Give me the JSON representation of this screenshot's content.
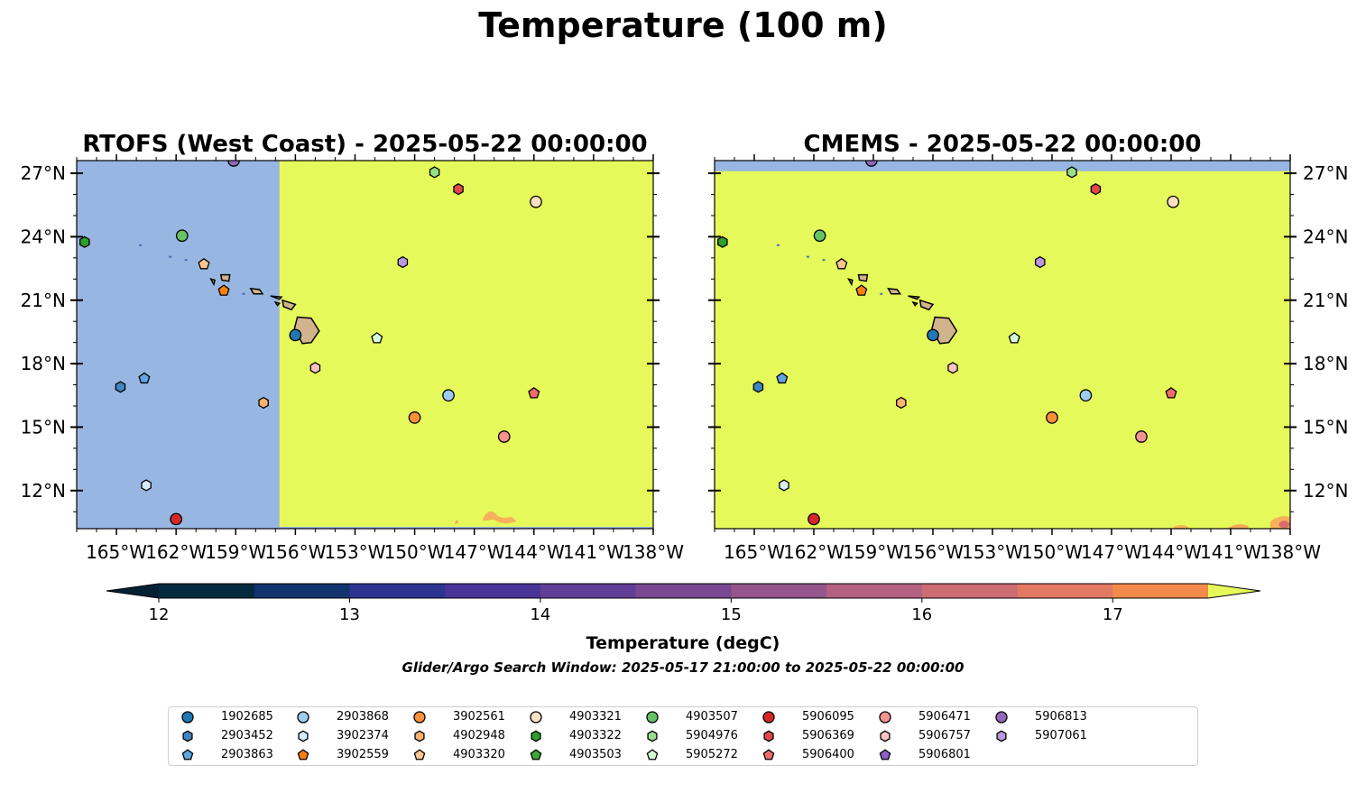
{
  "figure": {
    "title": "Temperature (100 m)",
    "search_window": "Glider/Argo Search Window: 2025-05-17 21:00:00 to 2025-05-22 00:00:00"
  },
  "colors": {
    "left_model_field": "#e6f95a",
    "left_no_data": "#97b6e1",
    "right_model_field": "#e6f95a",
    "right_no_data": "#97b6e1",
    "land": "#d2b48c",
    "warm_patch": "#f8a85a"
  },
  "panels": [
    {
      "title": "RTOFS (West Coast) - 2025-05-22 00:00:00",
      "data_extent_west_lon": -156.8
    },
    {
      "title": "CMEMS - 2025-05-22 00:00:00",
      "data_extent_north_lat": 27.1
    }
  ],
  "chart_data": {
    "type": "scatter",
    "projection": "plate-carree",
    "xlim": [
      -167,
      -138
    ],
    "ylim": [
      10.2,
      27.6
    ],
    "x_ticks": [
      -165,
      -162,
      -159,
      -156,
      -153,
      -150,
      -147,
      -144,
      -141,
      -138
    ],
    "x_tick_labels": [
      "165°W",
      "162°W",
      "159°W",
      "156°W",
      "153°W",
      "150°W",
      "147°W",
      "144°W",
      "141°W",
      "138°W"
    ],
    "y_ticks": [
      12,
      15,
      18,
      21,
      24,
      27
    ],
    "y_tick_labels": [
      "12°N",
      "15°N",
      "18°N",
      "21°N",
      "24°N",
      "27°N"
    ],
    "colorbar": {
      "label": "Temperature (degC)",
      "min": 12,
      "max": 17.5,
      "step": 0.5,
      "ticks": [
        12,
        13,
        14,
        15,
        16,
        17
      ],
      "tick_labels": [
        "12",
        "13",
        "14",
        "15",
        "16",
        "17"
      ],
      "extend": "both",
      "colors": [
        "#032a3d",
        "#13336e",
        "#2b3491",
        "#483598",
        "#613e96",
        "#794892",
        "#95558d",
        "#b36181",
        "#cc6c73",
        "#e27962",
        "#f38a4b",
        "#f9a43c",
        "#f6c34a"
      ],
      "under_color": "#052033",
      "over_color": "#e6f95a"
    },
    "series": [
      {
        "name": "1902685",
        "marker": "circle",
        "color": "#1f77b4",
        "lon": -156.0,
        "lat": 19.35
      },
      {
        "name": "2903452",
        "marker": "hexagon",
        "color": "#3d86c1",
        "lon": -164.8,
        "lat": 16.9
      },
      {
        "name": "2903863",
        "marker": "pentagon",
        "color": "#5fa6e1",
        "lon": -163.6,
        "lat": 17.3
      },
      {
        "name": "2903868",
        "marker": "circle",
        "color": "#9fcbee",
        "lon": -148.3,
        "lat": 16.5
      },
      {
        "name": "3902374",
        "marker": "hexagon",
        "color": "#d7ecfb",
        "lon": -163.5,
        "lat": 12.25
      },
      {
        "name": "3902559",
        "marker": "pentagon",
        "color": "#ff7f0e",
        "lon": -159.6,
        "lat": 21.45
      },
      {
        "name": "3902561",
        "marker": "circle",
        "color": "#fd9138",
        "lon": -150.0,
        "lat": 15.45
      },
      {
        "name": "4902948",
        "marker": "hexagon",
        "color": "#fdb36d",
        "lon": -157.6,
        "lat": 16.15
      },
      {
        "name": "4903320",
        "marker": "pentagon",
        "color": "#fec68f",
        "lon": -160.6,
        "lat": 22.7
      },
      {
        "name": "4903321",
        "marker": "circle",
        "color": "#fee0c2",
        "lon": -143.9,
        "lat": 25.65
      },
      {
        "name": "4903322",
        "marker": "hexagon",
        "color": "#2ca02c",
        "lon": -166.6,
        "lat": 23.75
      },
      {
        "name": "4903503",
        "marker": "pentagon",
        "color": "#3aa93a",
        "lon": -159.1,
        "lat": 27.6
      },
      {
        "name": "4903507",
        "marker": "circle",
        "color": "#65c465",
        "lon": -161.7,
        "lat": 24.05
      },
      {
        "name": "5904976",
        "marker": "hexagon",
        "color": "#98df8a",
        "lon": -149.0,
        "lat": 27.05
      },
      {
        "name": "5905272",
        "marker": "pentagon",
        "color": "#d8fcd8",
        "lon": -151.9,
        "lat": 19.2
      },
      {
        "name": "5906095",
        "marker": "circle",
        "color": "#d62728",
        "lon": -162.0,
        "lat": 10.65
      },
      {
        "name": "5906369",
        "marker": "hexagon",
        "color": "#e34749",
        "lon": -147.8,
        "lat": 26.25
      },
      {
        "name": "5906400",
        "marker": "pentagon",
        "color": "#ee6c6d",
        "lon": -144.0,
        "lat": 16.6
      },
      {
        "name": "5906471",
        "marker": "circle",
        "color": "#f59393",
        "lon": -145.5,
        "lat": 14.55
      },
      {
        "name": "5906757",
        "marker": "hexagon",
        "color": "#fcc3c3",
        "lon": -155.0,
        "lat": 17.8
      },
      {
        "name": "5906801",
        "marker": "pentagon",
        "color": "#8a60c7",
        "lon": -159.1,
        "lat": 27.6
      },
      {
        "name": "5906813",
        "marker": "circle",
        "color": "#9467bd",
        "lon": -159.1,
        "lat": 27.6
      },
      {
        "name": "5907061",
        "marker": "hexagon",
        "color": "#b99ae0",
        "lon": -150.6,
        "lat": 22.8
      }
    ]
  }
}
